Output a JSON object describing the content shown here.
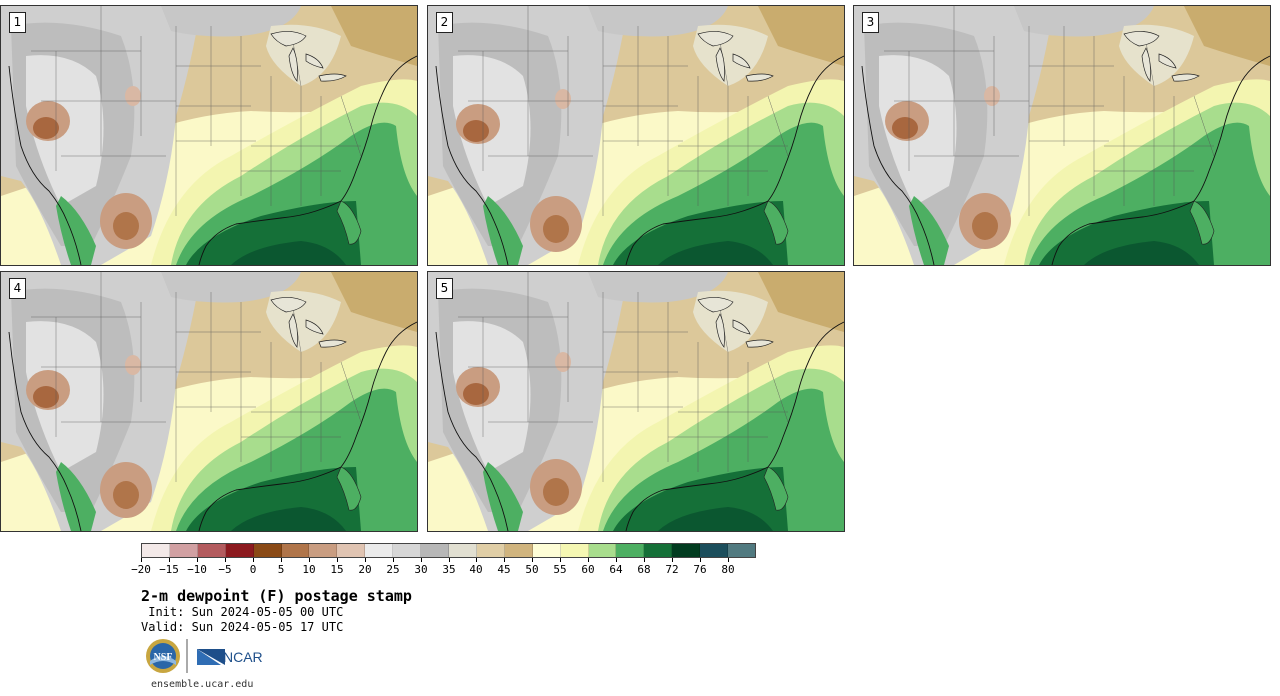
{
  "panels": [
    {
      "label": "1",
      "variant": 0
    },
    {
      "label": "2",
      "variant": 1
    },
    {
      "label": "3",
      "variant": 2
    },
    {
      "label": "4",
      "variant": 3
    },
    {
      "label": "5",
      "variant": 4
    }
  ],
  "colorbar": {
    "colors": [
      "#f3e9e8",
      "#d1a0a2",
      "#b35b5e",
      "#8c1a1f",
      "#8a4a16",
      "#b0754a",
      "#c99d81",
      "#e0c4b2",
      "#ebebeb",
      "#d6d6d6",
      "#b7b7b7",
      "#e1dfd1",
      "#e0cea6",
      "#d0b47e",
      "#fefdd6",
      "#f5f7b3",
      "#a8dd8d",
      "#4daf62",
      "#157038",
      "#023c20",
      "#1c4e5c",
      "#517a80"
    ],
    "tick_labels": [
      "−20",
      "−15",
      "−10",
      "−5",
      "0",
      "5",
      "10",
      "15",
      "20",
      "25",
      "30",
      "35",
      "40",
      "45",
      "50",
      "55",
      "60",
      "64",
      "68",
      "72",
      "76",
      "80"
    ]
  },
  "title": "2-m dewpoint (F) postage stamp",
  "init_text": " Init: Sun 2024-05-05 00 UTC",
  "valid_text": "Valid: Sun 2024-05-05 17 UTC",
  "logos": {
    "nsf": "NSF",
    "ncar": "NCAR"
  },
  "website": "ensemble.ucar.edu"
}
